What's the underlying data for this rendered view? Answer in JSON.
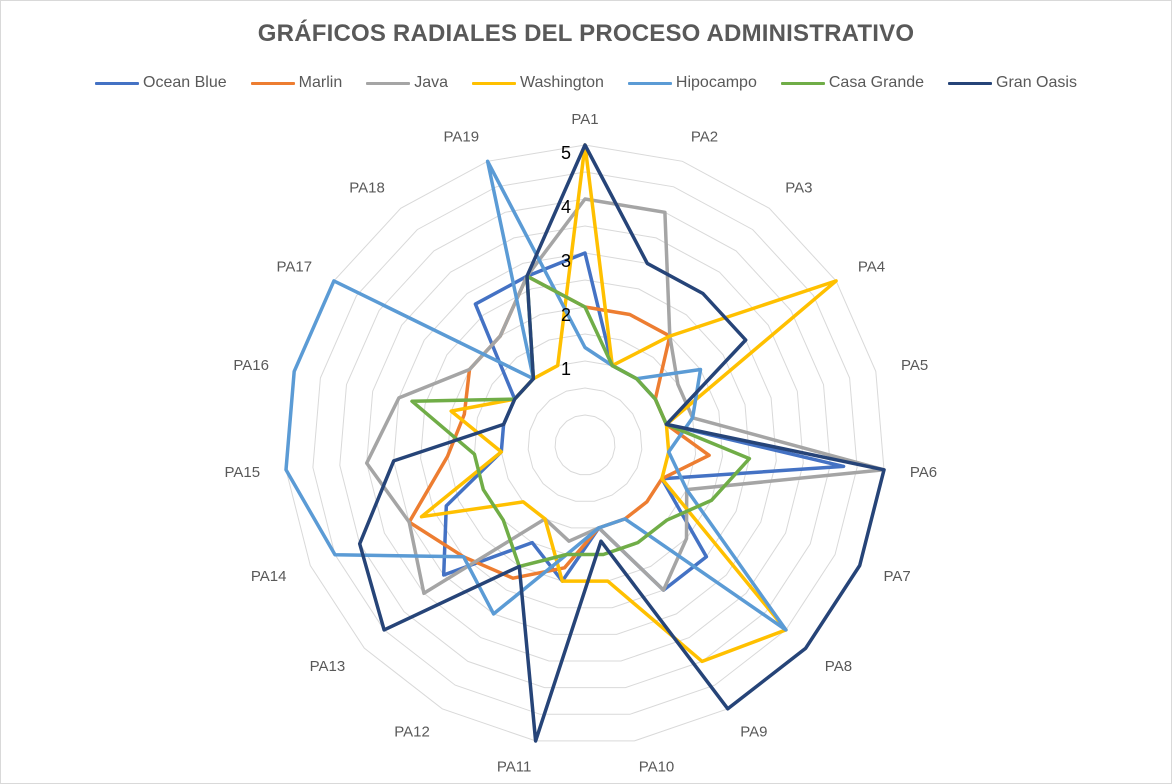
{
  "chart_data": {
    "type": "radar",
    "title": "GRÁFICOS RADIALES DEL PROCESO ADMINISTRATIVO",
    "categories": [
      "PA1",
      "PA2",
      "PA3",
      "PA4",
      "PA5",
      "PA6",
      "PA7",
      "PA8",
      "PA9",
      "PA10",
      "PA11",
      "PA12",
      "PA13",
      "PA14",
      "PA15",
      "PA16",
      "PA17",
      "PA18",
      "PA19"
    ],
    "rlim": [
      0,
      5
    ],
    "ticks": [
      "1",
      "2",
      "3",
      "4",
      "5"
    ],
    "legend_position": "top",
    "series": [
      {
        "name": "Ocean Blue",
        "color": "#4472C4",
        "values": [
          3.0,
          1.0,
          1.0,
          1.0,
          1.0,
          4.25,
          1.0,
          2.5,
          2.5,
          1.0,
          2.0,
          1.5,
          3.0,
          2.25,
          1.0,
          1.0,
          1.0,
          2.75,
          2.75
        ]
      },
      {
        "name": "Marlin",
        "color": "#ED7D31",
        "values": [
          2.0,
          2.0,
          2.0,
          1.0,
          1.0,
          1.75,
          1.0,
          1.0,
          1.0,
          1.0,
          1.75,
          2.25,
          2.5,
          3.0,
          2.0,
          1.75,
          2.0,
          2.0,
          2.75
        ]
      },
      {
        "name": "Java",
        "color": "#A5A5A5",
        "values": [
          4.0,
          4.0,
          2.0,
          1.5,
          1.5,
          5.0,
          1.5,
          2.0,
          2.5,
          1.0,
          1.25,
          1.0,
          3.5,
          3.0,
          3.5,
          3.0,
          2.0,
          2.0,
          2.75
        ]
      },
      {
        "name": "Washington",
        "color": "#FFC000",
        "values": [
          5.0,
          1.0,
          2.0,
          5.0,
          1.0,
          1.0,
          1.0,
          4.5,
          4.0,
          2.0,
          2.0,
          1.0,
          1.0,
          2.75,
          1.0,
          2.0,
          1.0,
          1.0,
          1.0
        ]
      },
      {
        "name": "Hipocampo",
        "color": "#5B9BD5",
        "values": [
          1.25,
          1.0,
          1.0,
          2.0,
          1.5,
          1.0,
          1.5,
          4.5,
          1.0,
          1.0,
          1.5,
          3.0,
          2.5,
          4.5,
          5.0,
          5.0,
          5.0,
          1.0,
          5.0
        ]
      },
      {
        "name": "Casa Grande",
        "color": "#70AD47",
        "values": [
          2.0,
          1.0,
          1.0,
          1.0,
          1.0,
          2.5,
          2.0,
          1.5,
          1.5,
          1.5,
          1.5,
          2.0,
          1.5,
          1.5,
          1.5,
          2.75,
          1.0,
          1.0,
          2.75
        ]
      },
      {
        "name": "Gran Oasis",
        "color": "#264478",
        "values": [
          5.0,
          3.0,
          3.0,
          3.0,
          1.0,
          5.0,
          5.0,
          5.0,
          5.0,
          1.25,
          5.0,
          2.0,
          4.5,
          4.0,
          3.0,
          1.0,
          1.0,
          1.0,
          2.75
        ]
      }
    ]
  }
}
